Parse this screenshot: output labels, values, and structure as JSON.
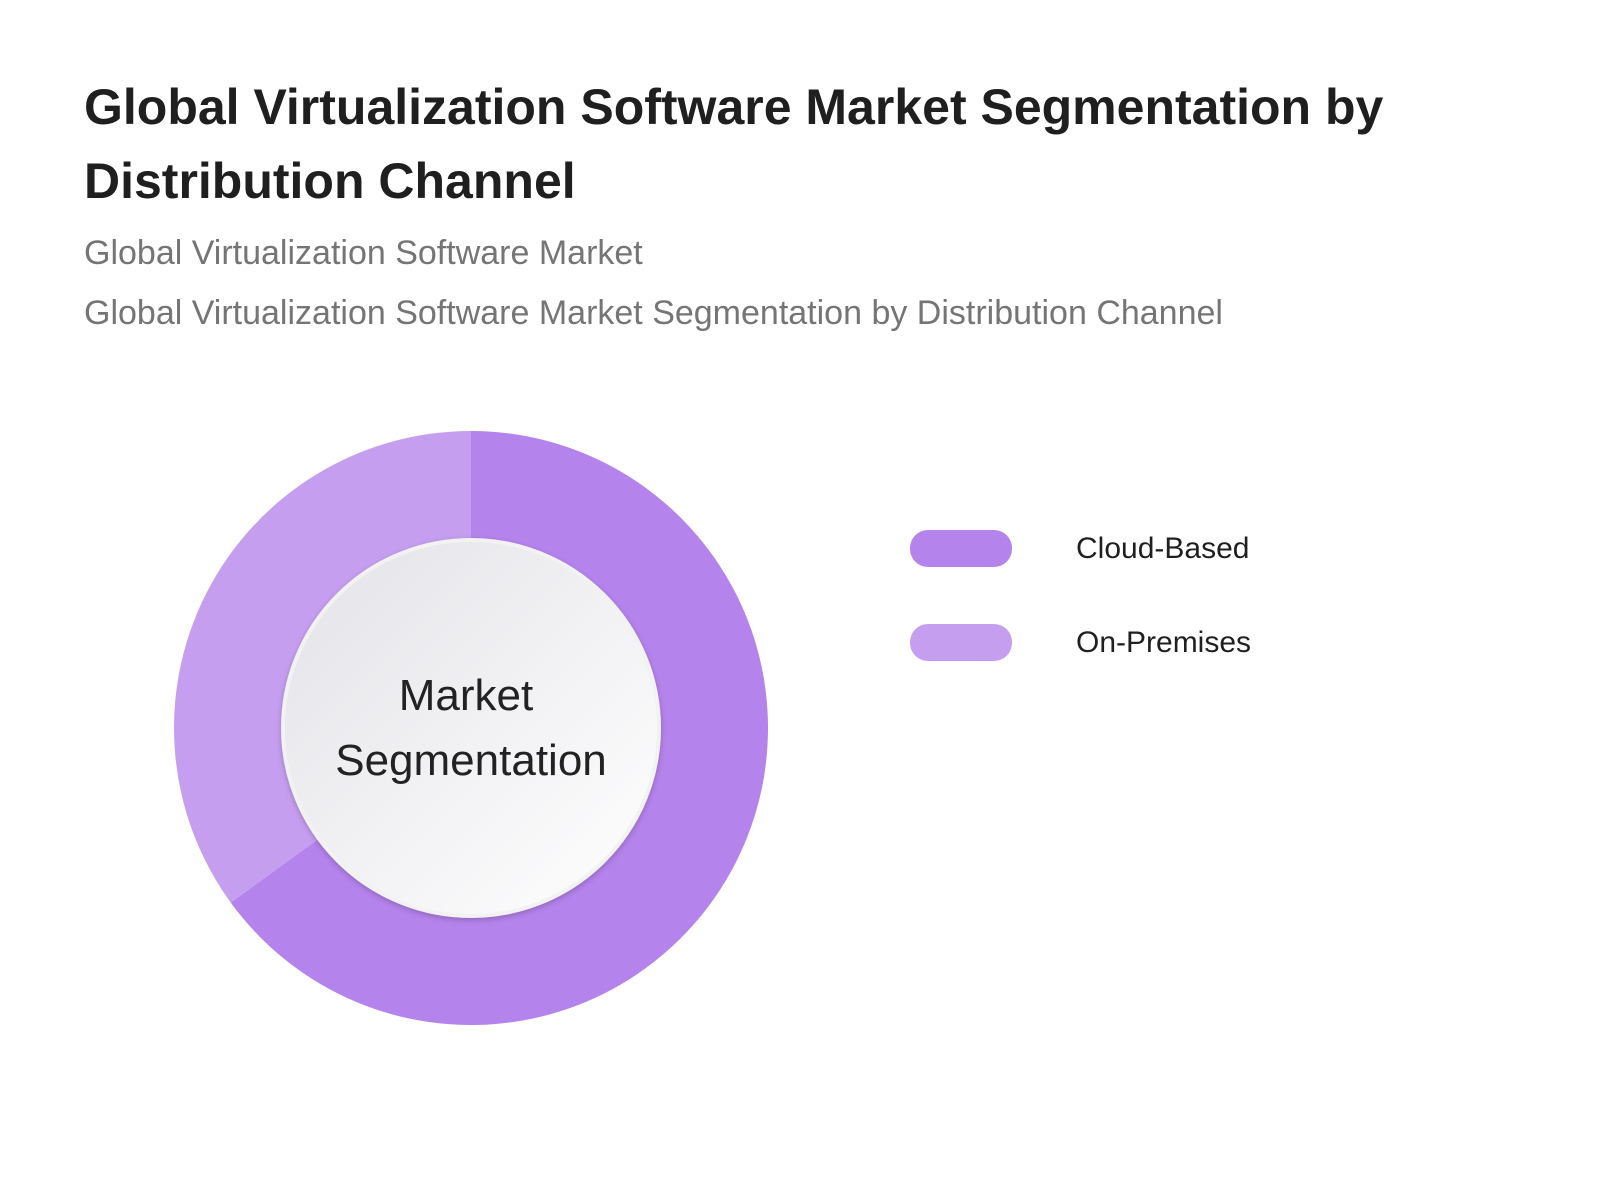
{
  "header": {
    "title": "Global Virtualization Software Market Segmentation by Distribution Channel",
    "subtitle_1": "Global Virtualization Software Market",
    "subtitle_2": "Global Virtualization Software Market Segmentation by Distribution Channel"
  },
  "chart_data": {
    "type": "pie",
    "variant": "donut",
    "center_label": [
      "Market",
      "Segmentation"
    ],
    "series": [
      {
        "name": "Cloud-Based",
        "value": 65,
        "color": "#b583ec"
      },
      {
        "name": "On-Premises",
        "value": 35,
        "color": "#c69ef0"
      }
    ],
    "legend": "right",
    "start": "top",
    "direction": "clockwise"
  }
}
